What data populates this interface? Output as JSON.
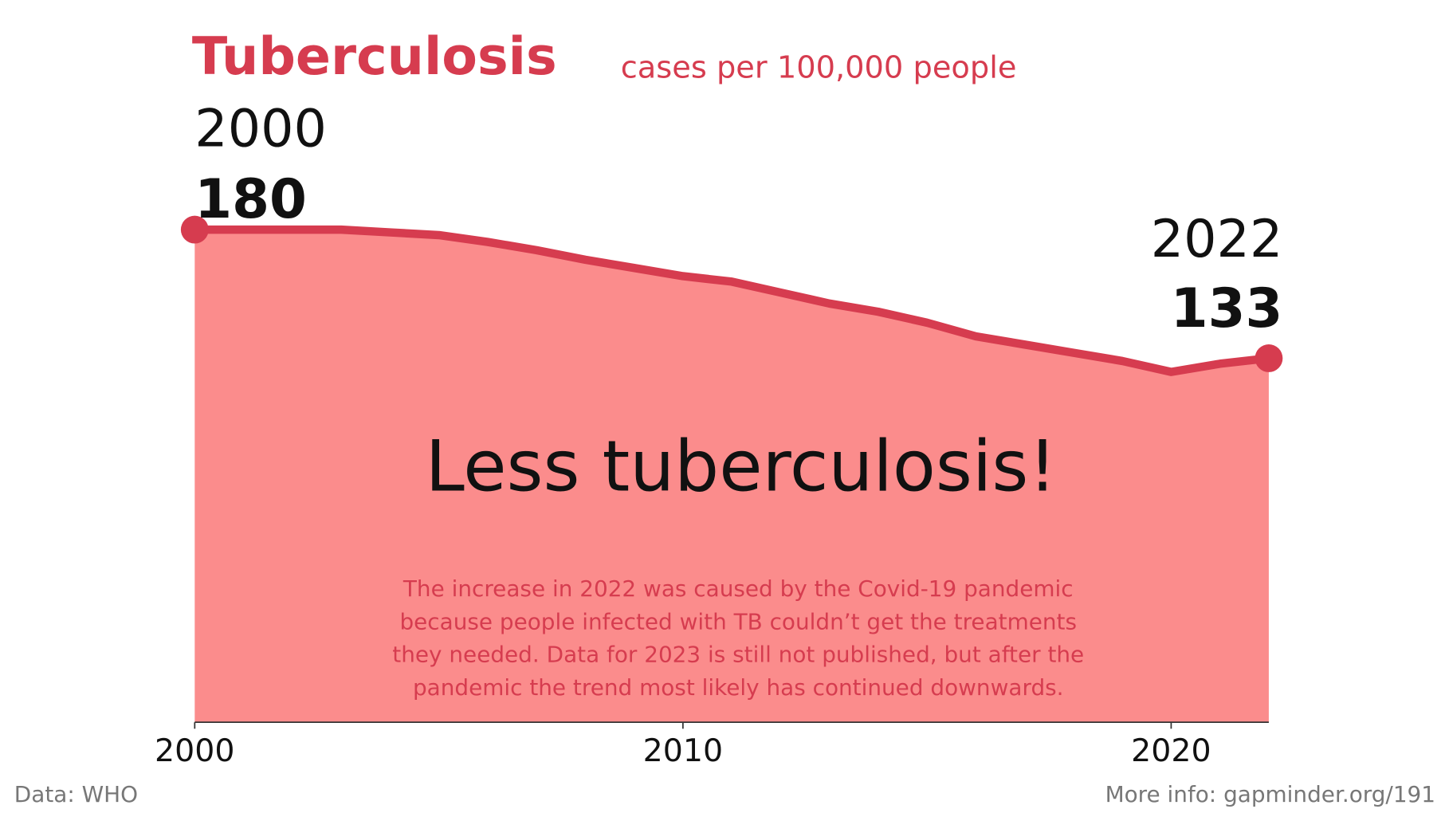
{
  "chart_data": {
    "type": "area",
    "title": "Tuberculosis",
    "subtitle": "cases per 100,000 people",
    "x": [
      2000,
      2001,
      2002,
      2003,
      2004,
      2005,
      2006,
      2007,
      2008,
      2009,
      2010,
      2011,
      2012,
      2013,
      2014,
      2015,
      2016,
      2017,
      2018,
      2019,
      2020,
      2021,
      2022
    ],
    "values": [
      180,
      180,
      180,
      180,
      179,
      178,
      175.5,
      172.5,
      169,
      166,
      163,
      161,
      157,
      153,
      150,
      146,
      141,
      138,
      135,
      132,
      128,
      131,
      133
    ],
    "line_color": "#d63c4f",
    "fill_color": "#fb8c8c",
    "xlim": [
      2000,
      2022
    ],
    "xticks": [
      2000,
      2010,
      2020
    ],
    "ylim": [
      0,
      180
    ],
    "annotation": "Less tuberculosis!",
    "note": [
      "The increase in 2022 was caused by the Covid-19 pandemic",
      "because people infected with TB couldn’t get the treatments",
      "they needed. Data for 2023 is still not published, but after the",
      "pandemic the trend most likely has continued downwards."
    ],
    "source": "Data: WHO",
    "more_info": "More info: gapminder.org/191"
  }
}
